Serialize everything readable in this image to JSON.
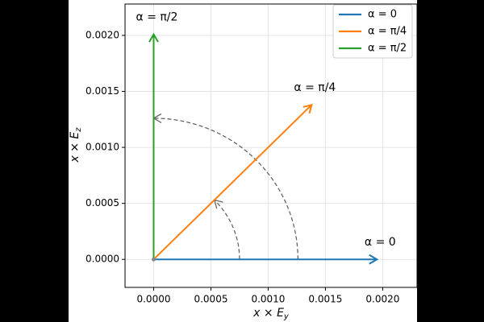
{
  "chart_data": {
    "type": "vector",
    "xlabel": {
      "base": "x × E",
      "sub": "y"
    },
    "ylabel": {
      "base": "x × E",
      "sub": "z"
    },
    "xlim": [
      -0.00025,
      0.0023
    ],
    "ylim": [
      -0.00025,
      0.00228
    ],
    "xticks": [
      {
        "value": 0,
        "label": "0.0000"
      },
      {
        "value": 0.0005,
        "label": "0.0005"
      },
      {
        "value": 0.001,
        "label": "0.0010"
      },
      {
        "value": 0.0015,
        "label": "0.0015"
      },
      {
        "value": 0.002,
        "label": "0.0020"
      }
    ],
    "yticks": [
      {
        "value": 0,
        "label": "0.0000"
      },
      {
        "value": 0.0005,
        "label": "0.0005"
      },
      {
        "value": 0.001,
        "label": "0.0010"
      },
      {
        "value": 0.0015,
        "label": "0.0015"
      },
      {
        "value": 0.002,
        "label": "0.0020"
      }
    ],
    "grid": true,
    "legend": "upper right",
    "vectors": [
      {
        "name": "α = 0",
        "color": "#1f77b4",
        "dx": 0.00195,
        "dy": 0,
        "label": "α = 0"
      },
      {
        "name": "α = π/4",
        "color": "#ff7f0e",
        "dx": 0.00138,
        "dy": 0.00138,
        "label": "α = π/4"
      },
      {
        "name": "α = π/2",
        "color": "#2ca02c",
        "dx": 0,
        "dy": 0.00201,
        "label": "α = π/2"
      }
    ],
    "arcs": [
      {
        "radius": 0.00075,
        "start_angle": 0,
        "end_angle": 45,
        "color": "#666666"
      },
      {
        "radius": 0.00126,
        "start_angle": 0,
        "end_angle": 90,
        "color": "#666666"
      }
    ]
  }
}
